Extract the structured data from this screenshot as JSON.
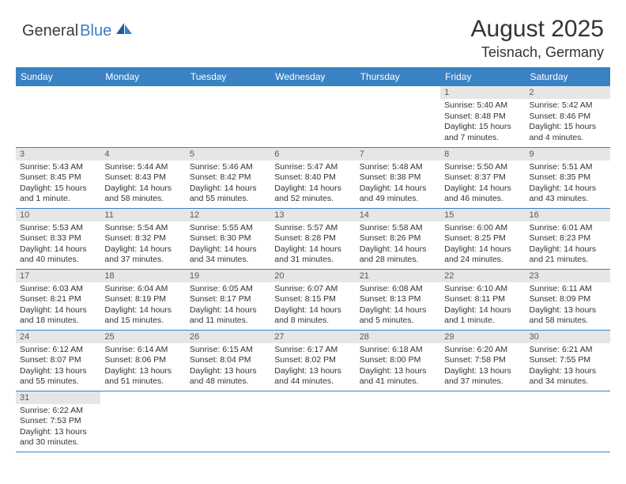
{
  "logo": {
    "text1": "General",
    "text2": "Blue"
  },
  "title": "August 2025",
  "location": "Teisnach, Germany",
  "colors": {
    "header_bg": "#3a82c4",
    "header_text": "#ffffff",
    "daynum_bg": "#e6e6e6",
    "daynum_text": "#5a5a5a",
    "body_text": "#333333",
    "border": "#3a82c4",
    "logo_blue": "#3a7fc4"
  },
  "day_headers": [
    "Sunday",
    "Monday",
    "Tuesday",
    "Wednesday",
    "Thursday",
    "Friday",
    "Saturday"
  ],
  "weeks": [
    [
      null,
      null,
      null,
      null,
      null,
      {
        "n": "1",
        "sr": "Sunrise: 5:40 AM",
        "ss": "Sunset: 8:48 PM",
        "dl": "Daylight: 15 hours and 7 minutes."
      },
      {
        "n": "2",
        "sr": "Sunrise: 5:42 AM",
        "ss": "Sunset: 8:46 PM",
        "dl": "Daylight: 15 hours and 4 minutes."
      }
    ],
    [
      {
        "n": "3",
        "sr": "Sunrise: 5:43 AM",
        "ss": "Sunset: 8:45 PM",
        "dl": "Daylight: 15 hours and 1 minute."
      },
      {
        "n": "4",
        "sr": "Sunrise: 5:44 AM",
        "ss": "Sunset: 8:43 PM",
        "dl": "Daylight: 14 hours and 58 minutes."
      },
      {
        "n": "5",
        "sr": "Sunrise: 5:46 AM",
        "ss": "Sunset: 8:42 PM",
        "dl": "Daylight: 14 hours and 55 minutes."
      },
      {
        "n": "6",
        "sr": "Sunrise: 5:47 AM",
        "ss": "Sunset: 8:40 PM",
        "dl": "Daylight: 14 hours and 52 minutes."
      },
      {
        "n": "7",
        "sr": "Sunrise: 5:48 AM",
        "ss": "Sunset: 8:38 PM",
        "dl": "Daylight: 14 hours and 49 minutes."
      },
      {
        "n": "8",
        "sr": "Sunrise: 5:50 AM",
        "ss": "Sunset: 8:37 PM",
        "dl": "Daylight: 14 hours and 46 minutes."
      },
      {
        "n": "9",
        "sr": "Sunrise: 5:51 AM",
        "ss": "Sunset: 8:35 PM",
        "dl": "Daylight: 14 hours and 43 minutes."
      }
    ],
    [
      {
        "n": "10",
        "sr": "Sunrise: 5:53 AM",
        "ss": "Sunset: 8:33 PM",
        "dl": "Daylight: 14 hours and 40 minutes."
      },
      {
        "n": "11",
        "sr": "Sunrise: 5:54 AM",
        "ss": "Sunset: 8:32 PM",
        "dl": "Daylight: 14 hours and 37 minutes."
      },
      {
        "n": "12",
        "sr": "Sunrise: 5:55 AM",
        "ss": "Sunset: 8:30 PM",
        "dl": "Daylight: 14 hours and 34 minutes."
      },
      {
        "n": "13",
        "sr": "Sunrise: 5:57 AM",
        "ss": "Sunset: 8:28 PM",
        "dl": "Daylight: 14 hours and 31 minutes."
      },
      {
        "n": "14",
        "sr": "Sunrise: 5:58 AM",
        "ss": "Sunset: 8:26 PM",
        "dl": "Daylight: 14 hours and 28 minutes."
      },
      {
        "n": "15",
        "sr": "Sunrise: 6:00 AM",
        "ss": "Sunset: 8:25 PM",
        "dl": "Daylight: 14 hours and 24 minutes."
      },
      {
        "n": "16",
        "sr": "Sunrise: 6:01 AM",
        "ss": "Sunset: 8:23 PM",
        "dl": "Daylight: 14 hours and 21 minutes."
      }
    ],
    [
      {
        "n": "17",
        "sr": "Sunrise: 6:03 AM",
        "ss": "Sunset: 8:21 PM",
        "dl": "Daylight: 14 hours and 18 minutes."
      },
      {
        "n": "18",
        "sr": "Sunrise: 6:04 AM",
        "ss": "Sunset: 8:19 PM",
        "dl": "Daylight: 14 hours and 15 minutes."
      },
      {
        "n": "19",
        "sr": "Sunrise: 6:05 AM",
        "ss": "Sunset: 8:17 PM",
        "dl": "Daylight: 14 hours and 11 minutes."
      },
      {
        "n": "20",
        "sr": "Sunrise: 6:07 AM",
        "ss": "Sunset: 8:15 PM",
        "dl": "Daylight: 14 hours and 8 minutes."
      },
      {
        "n": "21",
        "sr": "Sunrise: 6:08 AM",
        "ss": "Sunset: 8:13 PM",
        "dl": "Daylight: 14 hours and 5 minutes."
      },
      {
        "n": "22",
        "sr": "Sunrise: 6:10 AM",
        "ss": "Sunset: 8:11 PM",
        "dl": "Daylight: 14 hours and 1 minute."
      },
      {
        "n": "23",
        "sr": "Sunrise: 6:11 AM",
        "ss": "Sunset: 8:09 PM",
        "dl": "Daylight: 13 hours and 58 minutes."
      }
    ],
    [
      {
        "n": "24",
        "sr": "Sunrise: 6:12 AM",
        "ss": "Sunset: 8:07 PM",
        "dl": "Daylight: 13 hours and 55 minutes."
      },
      {
        "n": "25",
        "sr": "Sunrise: 6:14 AM",
        "ss": "Sunset: 8:06 PM",
        "dl": "Daylight: 13 hours and 51 minutes."
      },
      {
        "n": "26",
        "sr": "Sunrise: 6:15 AM",
        "ss": "Sunset: 8:04 PM",
        "dl": "Daylight: 13 hours and 48 minutes."
      },
      {
        "n": "27",
        "sr": "Sunrise: 6:17 AM",
        "ss": "Sunset: 8:02 PM",
        "dl": "Daylight: 13 hours and 44 minutes."
      },
      {
        "n": "28",
        "sr": "Sunrise: 6:18 AM",
        "ss": "Sunset: 8:00 PM",
        "dl": "Daylight: 13 hours and 41 minutes."
      },
      {
        "n": "29",
        "sr": "Sunrise: 6:20 AM",
        "ss": "Sunset: 7:58 PM",
        "dl": "Daylight: 13 hours and 37 minutes."
      },
      {
        "n": "30",
        "sr": "Sunrise: 6:21 AM",
        "ss": "Sunset: 7:55 PM",
        "dl": "Daylight: 13 hours and 34 minutes."
      }
    ],
    [
      {
        "n": "31",
        "sr": "Sunrise: 6:22 AM",
        "ss": "Sunset: 7:53 PM",
        "dl": "Daylight: 13 hours and 30 minutes."
      },
      null,
      null,
      null,
      null,
      null,
      null
    ]
  ]
}
